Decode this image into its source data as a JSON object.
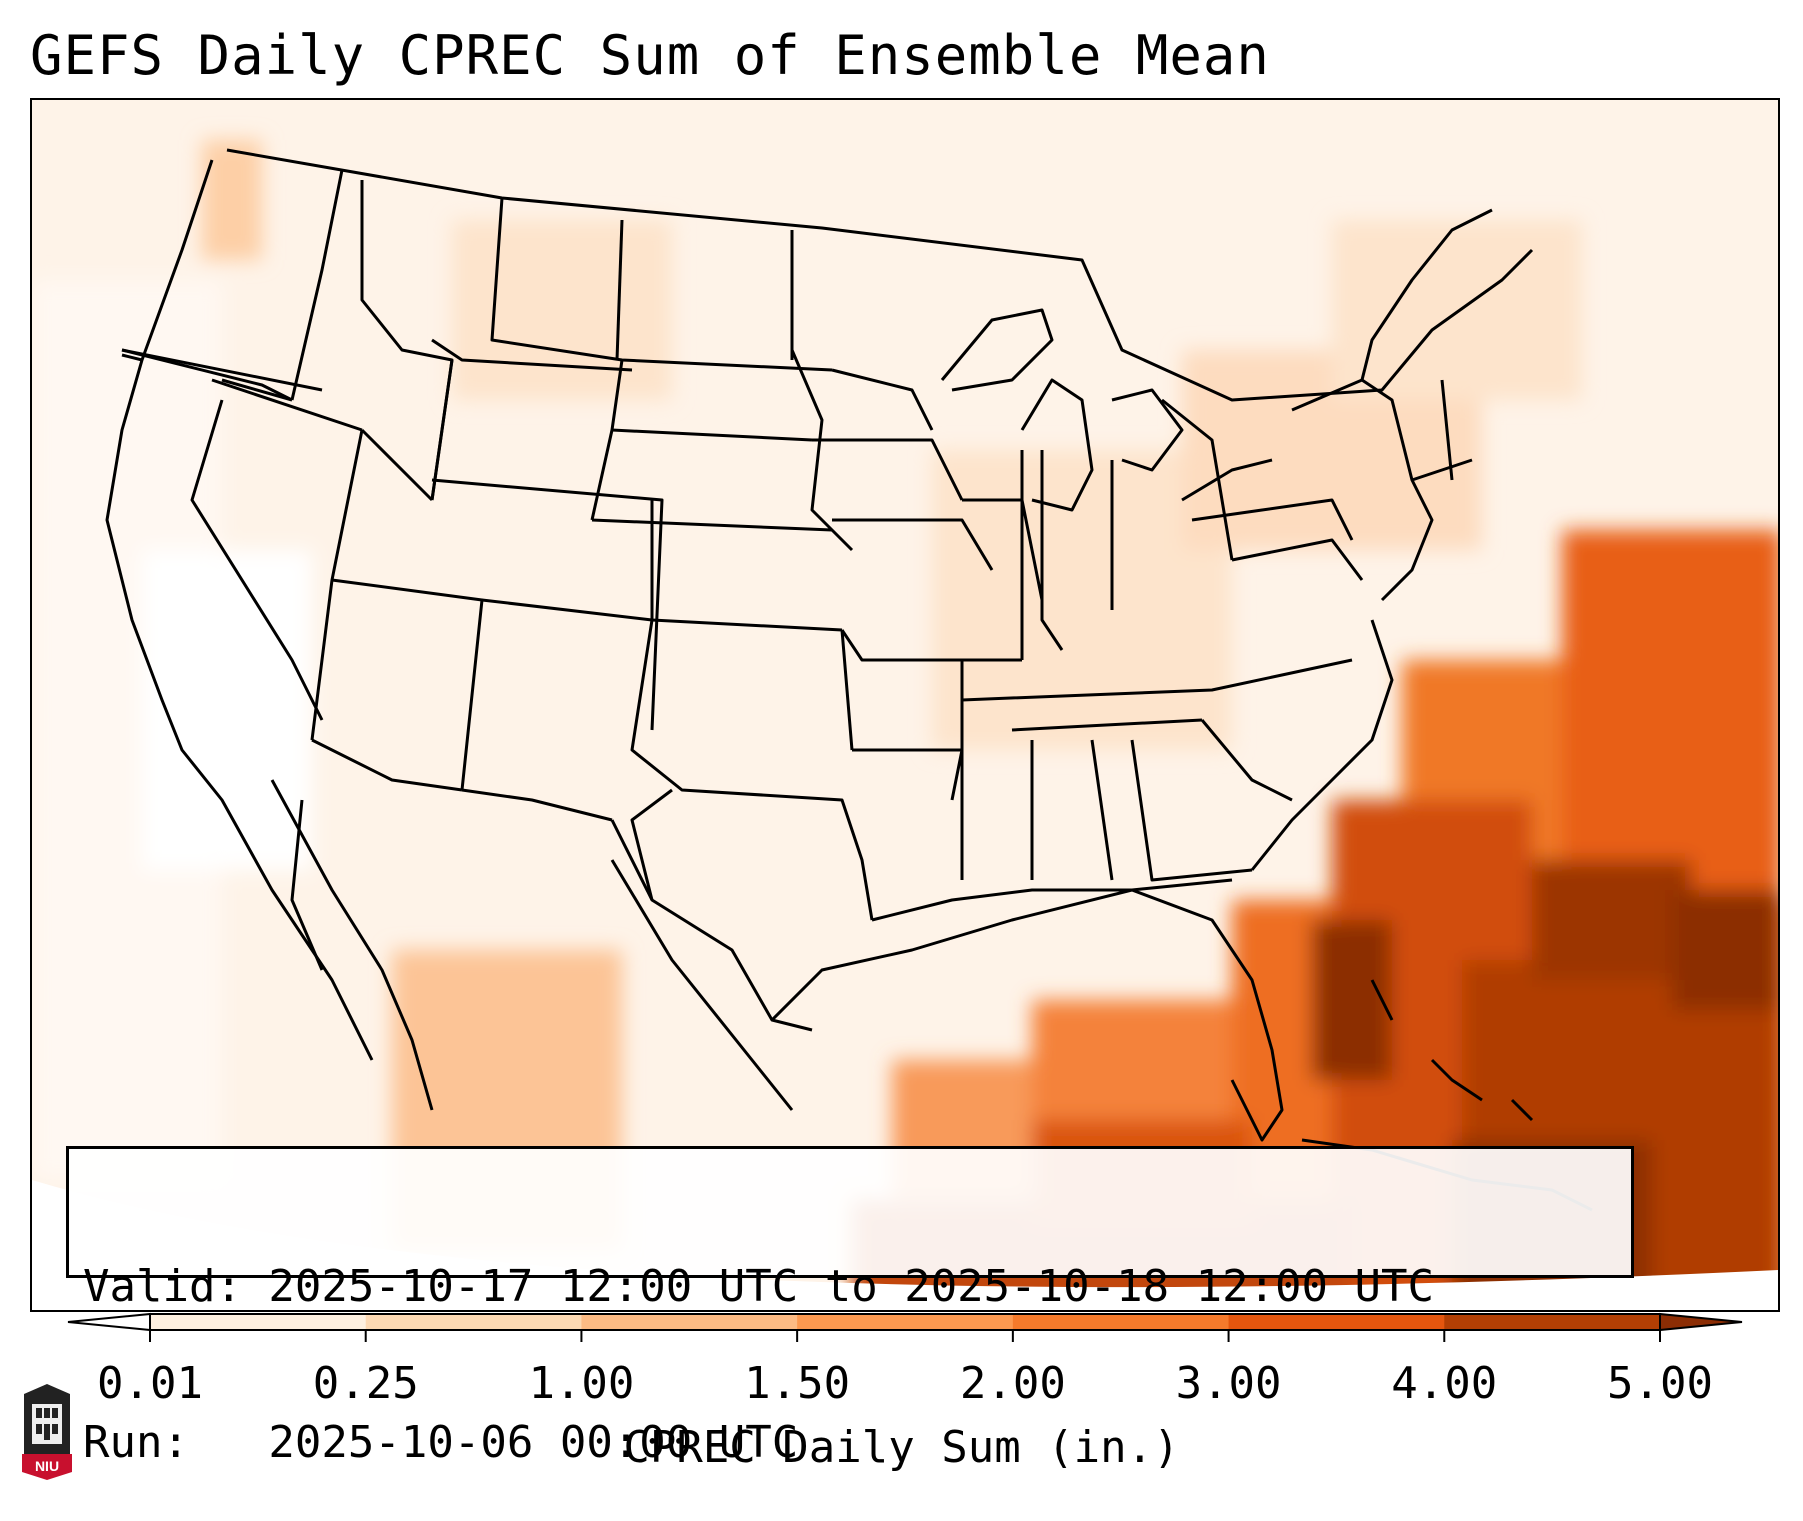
{
  "title": "GEFS Daily CPREC Sum of Ensemble Mean",
  "info": {
    "valid_line": "Valid: 2025-10-17 12:00 UTC to 2025-10-18 12:00 UTC",
    "run_line": "Run:   2025-10-06 00:00 UTC"
  },
  "colorbar": {
    "label": "CPREC Daily Sum (in.)",
    "ticks": [
      "0.01",
      "0.25",
      "1.00",
      "1.50",
      "2.00",
      "3.00",
      "4.00",
      "5.00"
    ],
    "colors": [
      "#fef0e0",
      "#fdd9b3",
      "#fdbb84",
      "#fc9950",
      "#f57a2b",
      "#e4560e",
      "#b23f04"
    ],
    "under_color": "#ffffff",
    "over_color": "#8c2d04"
  },
  "map": {
    "region": "CONUS",
    "heavy_precip_areas": [
      "Southeast US coast",
      "Florida",
      "Gulf of Mexico",
      "Western Atlantic",
      "Bahamas"
    ]
  },
  "logo": {
    "text": "NIU",
    "color": "#c8102e"
  }
}
